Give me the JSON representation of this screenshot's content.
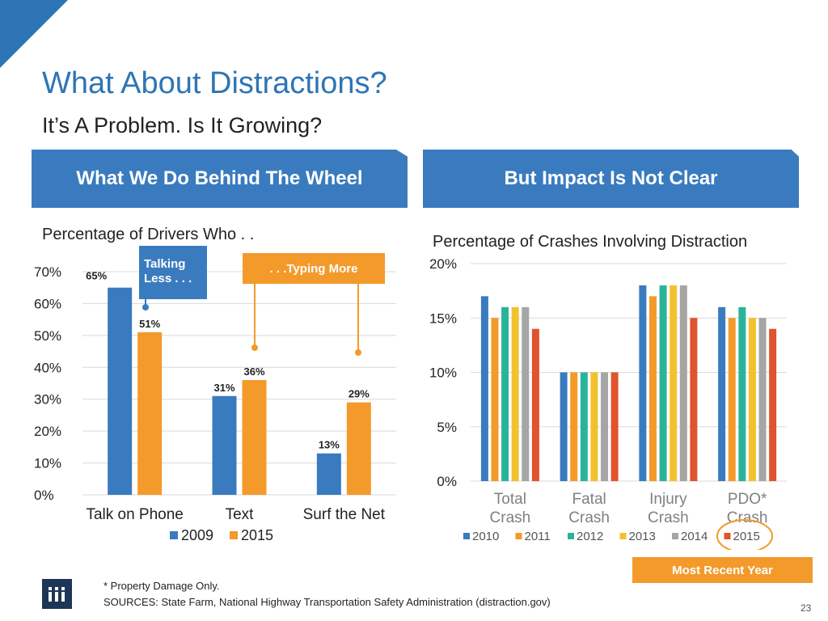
{
  "title": "What About Distractions?",
  "subtitle": "It’s A Problem. Is It Growing?",
  "banner_left": "What We Do Behind The Wheel",
  "banner_right": "But Impact Is Not Clear",
  "callouts": {
    "talking_line1": "Talking",
    "talking_line2": "Less . . .",
    "typing": ". . .Typing More"
  },
  "recent_label": "Most Recent Year",
  "footnote": "* Property Damage Only.",
  "sources": "SOURCES: State Farm, National Highway Transportation Safety Administration (distraction.gov)",
  "page_number": "23",
  "colors": {
    "accent_blue": "#2e75b6",
    "banner_blue": "#3a7bbf",
    "orange": "#f39a2b",
    "logo_navy": "#1d3557"
  },
  "chart_data": [
    {
      "type": "bar",
      "title": "Percentage of Drivers Who . .",
      "categories": [
        "Talk on Phone",
        "Text",
        "Surf the Net"
      ],
      "series": [
        {
          "name": "2009",
          "values": [
            65,
            31,
            13
          ],
          "labels": [
            "65%",
            "31%",
            "13%"
          ],
          "color": "#3a7bbf"
        },
        {
          "name": "2015",
          "values": [
            51,
            36,
            29
          ],
          "labels": [
            "51%",
            "36%",
            "29%"
          ],
          "color": "#f39a2b"
        }
      ],
      "ylim": [
        0,
        70
      ],
      "yticks": [
        "0%",
        "10%",
        "20%",
        "30%",
        "40%",
        "50%",
        "60%",
        "70%"
      ],
      "legend": "bottom"
    },
    {
      "type": "bar",
      "title": "Percentage of Crashes Involving Distraction",
      "categories": [
        [
          "Total",
          "Crash"
        ],
        [
          "Fatal",
          "Crash"
        ],
        [
          "Injury",
          "Crash"
        ],
        [
          "PDO*",
          "Crash"
        ]
      ],
      "series": [
        {
          "name": "2010",
          "values": [
            17,
            10,
            18,
            16
          ],
          "color": "#3a7bbf"
        },
        {
          "name": "2011",
          "values": [
            15,
            10,
            17,
            15
          ],
          "color": "#f39a2b"
        },
        {
          "name": "2012",
          "values": [
            16,
            10,
            18,
            16
          ],
          "color": "#2bb39a"
        },
        {
          "name": "2013",
          "values": [
            16,
            10,
            18,
            15
          ],
          "color": "#f2c12e"
        },
        {
          "name": "2014",
          "values": [
            16,
            10,
            18,
            15
          ],
          "color": "#a5a5a5"
        },
        {
          "name": "2015",
          "values": [
            14,
            10,
            15,
            14
          ],
          "color": "#e0532c"
        }
      ],
      "ylim": [
        0,
        20
      ],
      "yticks": [
        "0%",
        "5%",
        "10%",
        "15%",
        "20%"
      ],
      "legend": "bottom",
      "highlight": "2015"
    }
  ]
}
